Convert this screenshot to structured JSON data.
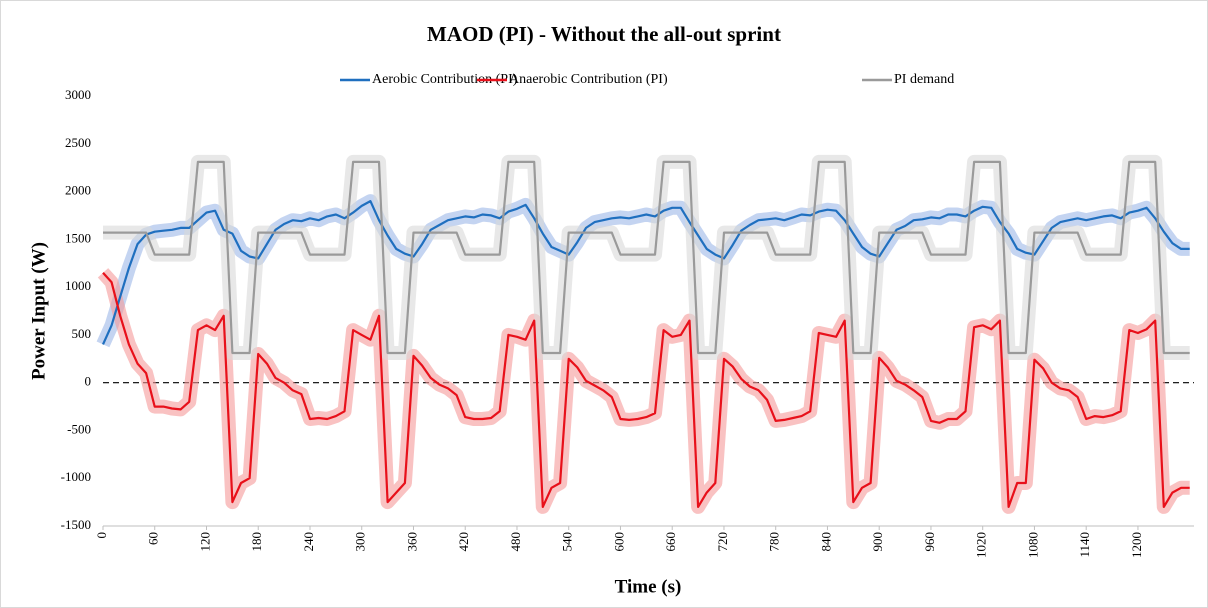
{
  "chart_data": {
    "type": "line",
    "title": "MAOD (PI) - Without the all-out sprint",
    "x_label": "Time (s)",
    "y_label": "Power Input (W)",
    "xlim": [
      0,
      1265
    ],
    "ylim": [
      -1500,
      3000
    ],
    "xticks": [
      0,
      60,
      120,
      180,
      240,
      300,
      360,
      420,
      480,
      540,
      600,
      660,
      720,
      780,
      840,
      900,
      960,
      1020,
      1080,
      1140,
      1200
    ],
    "yticks": [
      -1500,
      -1000,
      -500,
      0,
      500,
      1000,
      1500,
      2000,
      2500,
      3000
    ],
    "reference_line": 0,
    "x": [
      0,
      10,
      20,
      30,
      40,
      50,
      60,
      70,
      80,
      90,
      100,
      110,
      120,
      130,
      140,
      150,
      160,
      170,
      180,
      190,
      200,
      210,
      220,
      230,
      240,
      250,
      260,
      270,
      280,
      290,
      300,
      310,
      320,
      330,
      340,
      350,
      360,
      370,
      380,
      390,
      400,
      410,
      420,
      430,
      440,
      450,
      460,
      470,
      480,
      490,
      500,
      510,
      520,
      530,
      540,
      550,
      560,
      570,
      580,
      590,
      600,
      610,
      620,
      630,
      640,
      650,
      660,
      670,
      680,
      690,
      700,
      710,
      720,
      730,
      740,
      750,
      760,
      770,
      780,
      790,
      800,
      810,
      820,
      830,
      840,
      850,
      860,
      870,
      880,
      890,
      900,
      910,
      920,
      930,
      940,
      950,
      960,
      970,
      980,
      990,
      1000,
      1010,
      1020,
      1030,
      1040,
      1050,
      1060,
      1070,
      1080,
      1090,
      1100,
      1110,
      1120,
      1130,
      1140,
      1150,
      1160,
      1170,
      1180,
      1190,
      1200,
      1210,
      1220,
      1230,
      1240,
      1250,
      1260
    ],
    "series": [
      {
        "name": "Aerobic Contribution (PI)",
        "color": "#1f6fbf",
        "band_color": "#9db8e8",
        "values": [
          400,
          600,
          900,
          1200,
          1450,
          1550,
          1580,
          1590,
          1600,
          1620,
          1620,
          1700,
          1780,
          1800,
          1600,
          1560,
          1380,
          1320,
          1300,
          1450,
          1600,
          1660,
          1700,
          1690,
          1720,
          1700,
          1740,
          1760,
          1720,
          1780,
          1850,
          1900,
          1700,
          1540,
          1400,
          1350,
          1320,
          1450,
          1600,
          1650,
          1700,
          1720,
          1740,
          1730,
          1760,
          1750,
          1720,
          1790,
          1820,
          1860,
          1720,
          1560,
          1420,
          1380,
          1340,
          1470,
          1620,
          1680,
          1700,
          1720,
          1730,
          1720,
          1740,
          1760,
          1740,
          1800,
          1830,
          1830,
          1680,
          1540,
          1400,
          1340,
          1300,
          1440,
          1590,
          1650,
          1700,
          1710,
          1720,
          1700,
          1730,
          1760,
          1750,
          1790,
          1810,
          1800,
          1700,
          1560,
          1420,
          1350,
          1320,
          1460,
          1600,
          1640,
          1700,
          1710,
          1730,
          1720,
          1760,
          1760,
          1740,
          1800,
          1840,
          1830,
          1680,
          1560,
          1400,
          1360,
          1340,
          1480,
          1620,
          1680,
          1700,
          1720,
          1700,
          1720,
          1740,
          1750,
          1720,
          1780,
          1800,
          1830,
          1720,
          1580,
          1460,
          1400,
          1400
        ]
      },
      {
        "name": "Anaerobic Contribution (PI)",
        "color": "#e8101a",
        "band_color": "#f59a9a",
        "values": [
          1150,
          1050,
          700,
          400,
          200,
          100,
          -250,
          -250,
          -270,
          -280,
          -200,
          550,
          600,
          550,
          700,
          -1250,
          -1050,
          -1000,
          300,
          200,
          50,
          0,
          -80,
          -120,
          -380,
          -370,
          -380,
          -350,
          -300,
          550,
          500,
          450,
          700,
          -1250,
          -1150,
          -1050,
          280,
          180,
          50,
          -20,
          -60,
          -130,
          -360,
          -380,
          -380,
          -370,
          -300,
          500,
          480,
          450,
          650,
          -1300,
          -1100,
          -1050,
          250,
          160,
          20,
          -30,
          -80,
          -150,
          -380,
          -390,
          -380,
          -360,
          -320,
          550,
          480,
          500,
          650,
          -1300,
          -1150,
          -1050,
          250,
          170,
          40,
          -40,
          -80,
          -180,
          -400,
          -390,
          -370,
          -350,
          -300,
          520,
          500,
          480,
          650,
          -1250,
          -1100,
          -1050,
          260,
          160,
          20,
          -20,
          -80,
          -150,
          -400,
          -420,
          -380,
          -380,
          -300,
          580,
          600,
          560,
          650,
          -1300,
          -1050,
          -1050,
          240,
          150,
          0,
          -60,
          -80,
          -150,
          -380,
          -350,
          -360,
          -340,
          -300,
          550,
          520,
          560,
          650,
          -1300,
          -1150,
          -1100,
          -1100
        ]
      },
      {
        "name": "PI demand",
        "color": "#9a9a9a",
        "band_color": "#d9d9d9",
        "values": [
          1570,
          1570,
          1570,
          1570,
          1570,
          1570,
          1340,
          1340,
          1340,
          1340,
          1340,
          2310,
          2310,
          2310,
          2310,
          310,
          310,
          310,
          1570,
          1570,
          1570,
          1570,
          1570,
          1570,
          1340,
          1340,
          1340,
          1340,
          1340,
          2310,
          2310,
          2310,
          2310,
          310,
          310,
          310,
          1570,
          1570,
          1570,
          1570,
          1570,
          1570,
          1340,
          1340,
          1340,
          1340,
          1340,
          2310,
          2310,
          2310,
          2310,
          310,
          310,
          310,
          1570,
          1570,
          1570,
          1570,
          1570,
          1570,
          1340,
          1340,
          1340,
          1340,
          1340,
          2310,
          2310,
          2310,
          2310,
          310,
          310,
          310,
          1570,
          1570,
          1570,
          1570,
          1570,
          1570,
          1340,
          1340,
          1340,
          1340,
          1340,
          2310,
          2310,
          2310,
          2310,
          310,
          310,
          310,
          1570,
          1570,
          1570,
          1570,
          1570,
          1570,
          1340,
          1340,
          1340,
          1340,
          1340,
          2310,
          2310,
          2310,
          2310,
          310,
          310,
          310,
          1570,
          1570,
          1570,
          1570,
          1570,
          1570,
          1340,
          1340,
          1340,
          1340,
          1340,
          2310,
          2310,
          2310,
          2310,
          310,
          310,
          310,
          310
        ]
      }
    ]
  }
}
